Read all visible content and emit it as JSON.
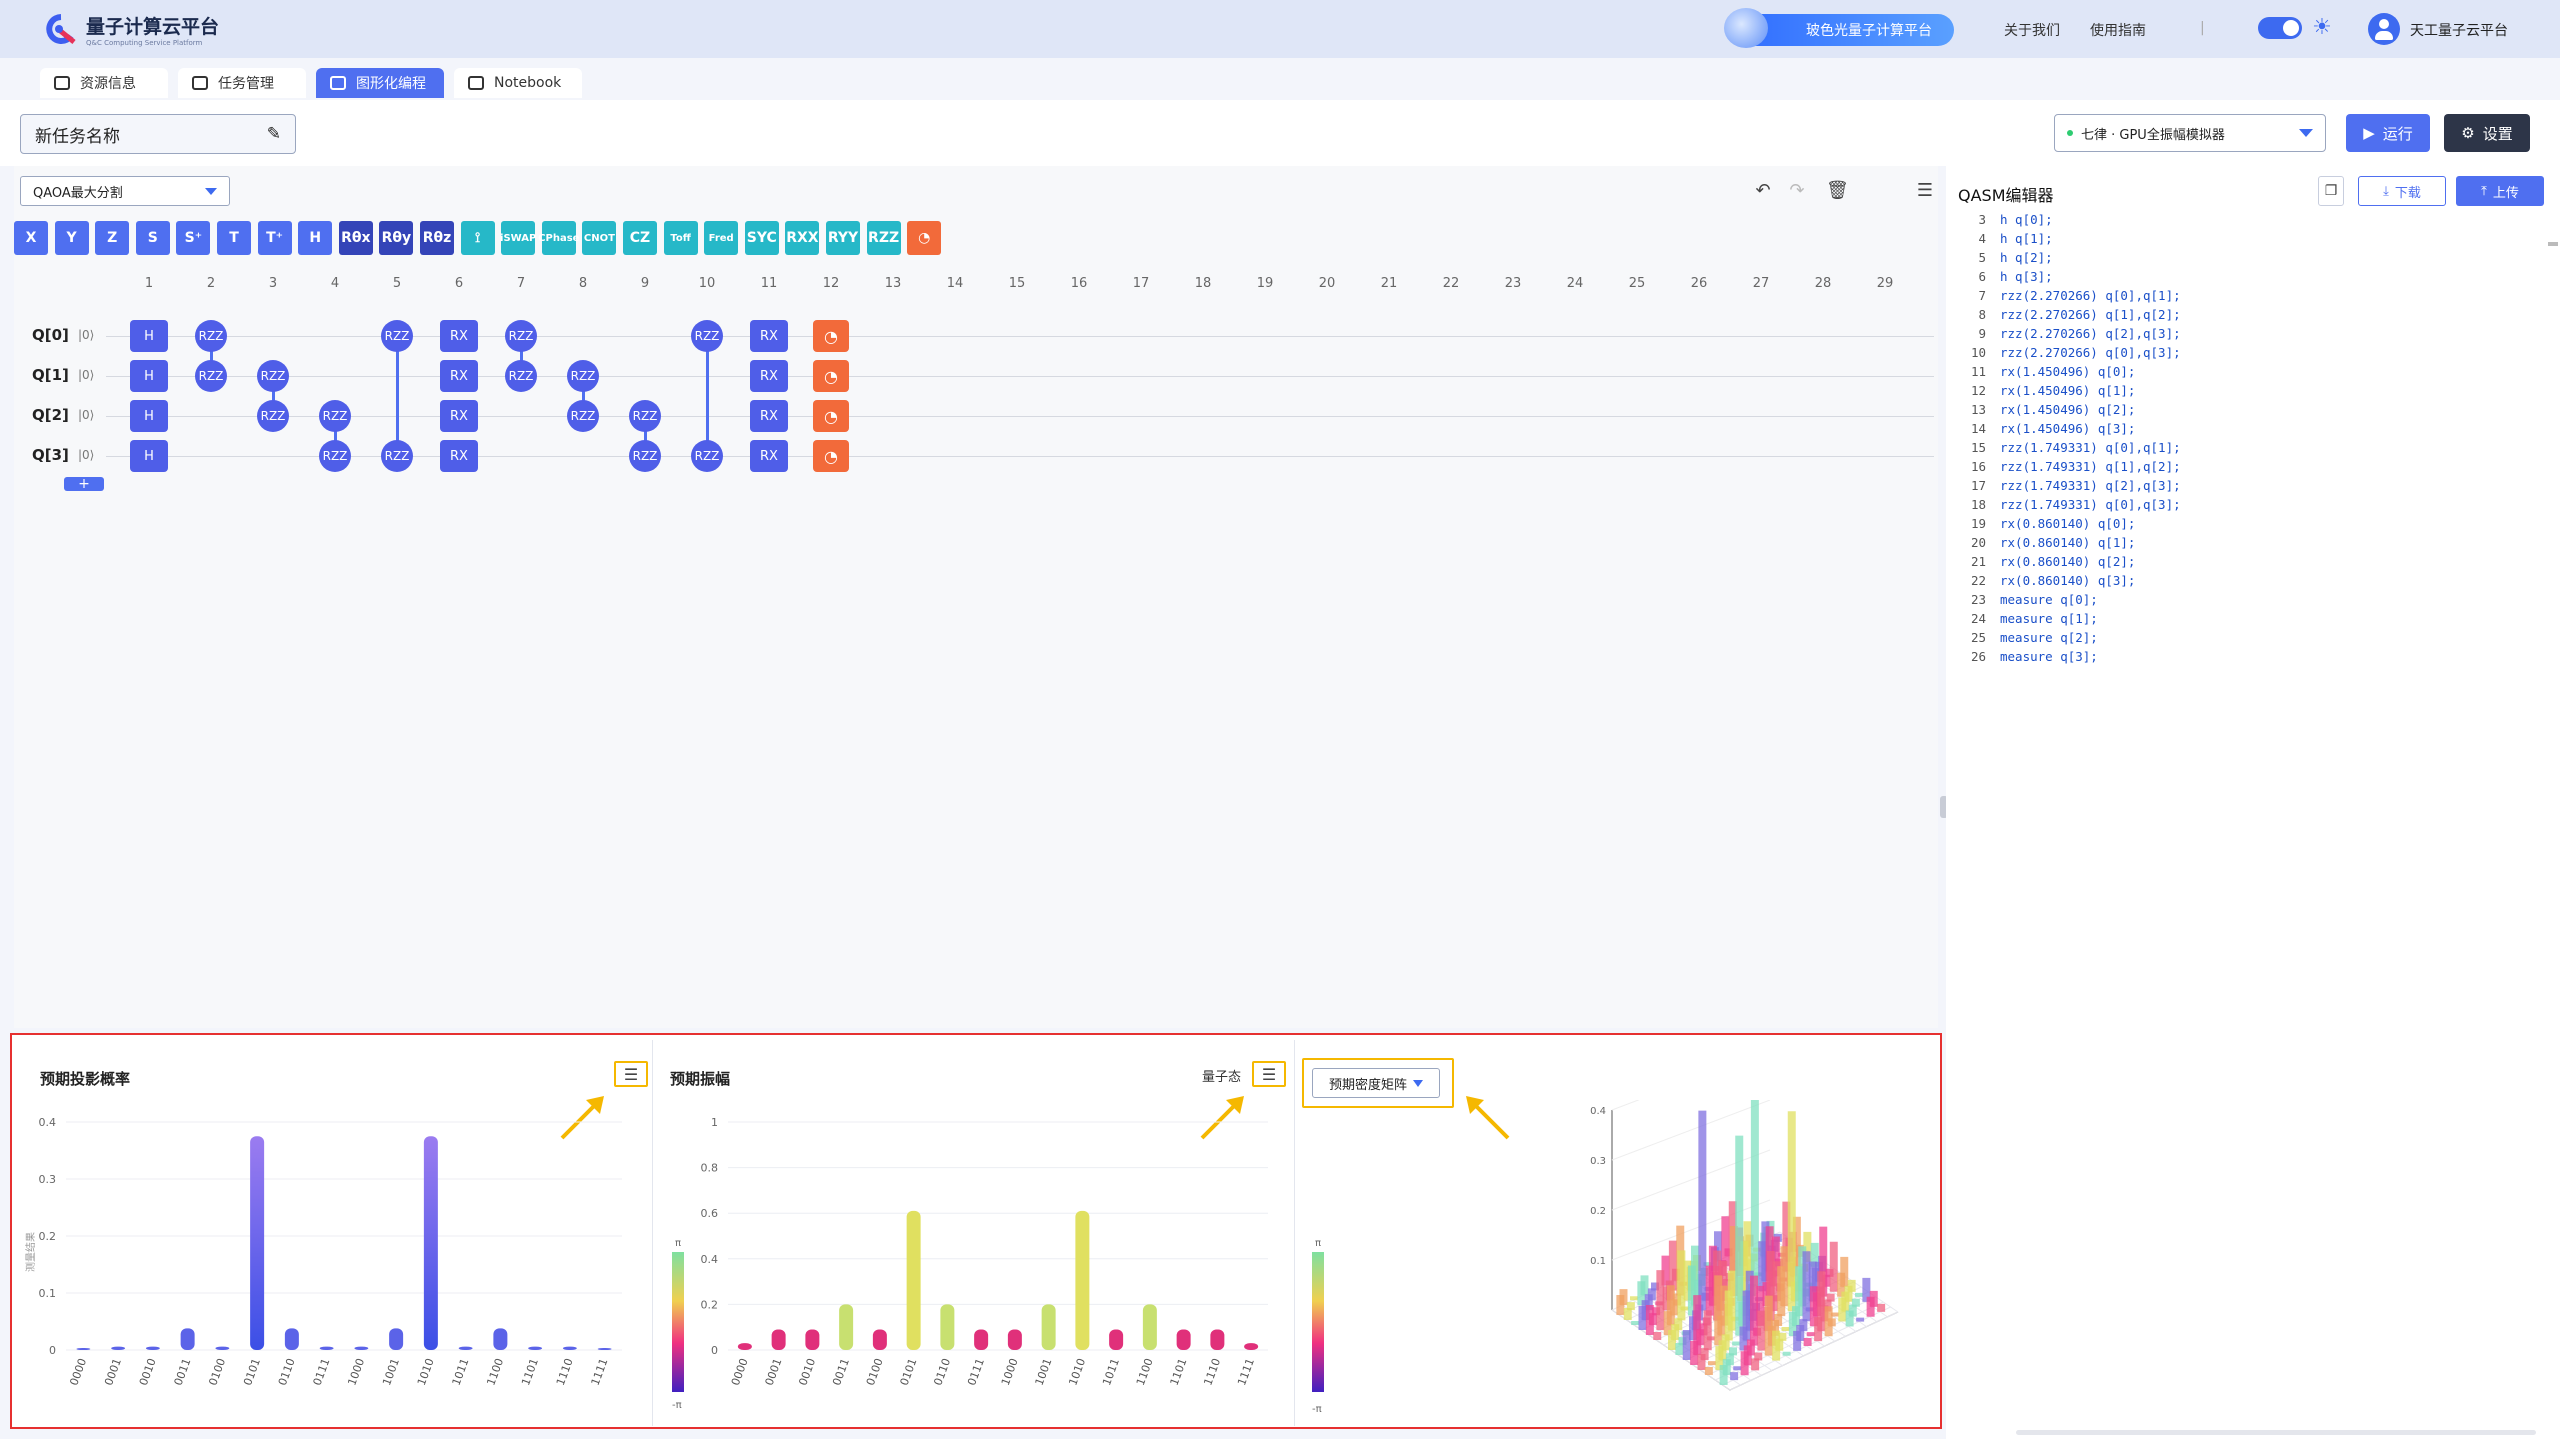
{
  "header": {
    "app_title": "量子计算云平台",
    "app_subtitle": "Q&C Computing Service Platform",
    "promo_label": "玻色光量子计算平台",
    "links": [
      "关于我们",
      "使用指南"
    ],
    "divider": "|",
    "user_name": "天工量子云平台"
  },
  "tabs": [
    {
      "label": "资源信息"
    },
    {
      "label": "任务管理"
    },
    {
      "label": "图形化编程"
    },
    {
      "label": "Notebook"
    }
  ],
  "task": {
    "name": "新任务名称",
    "backend": "七律 · GPU全振幅模拟器",
    "run_label": "运行",
    "settings_label": "设置"
  },
  "editor": {
    "algorithm": "QAOA最大分割",
    "gates": [
      {
        "label": "X",
        "color": "#4f6ff0"
      },
      {
        "label": "Y",
        "color": "#4f6ff0"
      },
      {
        "label": "Z",
        "color": "#4f6ff0"
      },
      {
        "label": "S",
        "color": "#4f6ff0"
      },
      {
        "label": "S⁺",
        "color": "#4f6ff0"
      },
      {
        "label": "T",
        "color": "#4f6ff0"
      },
      {
        "label": "T⁺",
        "color": "#4f6ff0"
      },
      {
        "label": "H",
        "color": "#4f6ff0"
      },
      {
        "label": "Rθx",
        "color": "#3444b8"
      },
      {
        "label": "Rθy",
        "color": "#3444b8"
      },
      {
        "label": "Rθz",
        "color": "#3444b8"
      },
      {
        "label": "⟟",
        "color": "#26b8c8"
      },
      {
        "label": "iSWAP",
        "color": "#26b8c8"
      },
      {
        "label": "CPhase",
        "color": "#26b8c8"
      },
      {
        "label": "CNOT",
        "color": "#26b8c8"
      },
      {
        "label": "CZ",
        "color": "#26b8c8"
      },
      {
        "label": "Toff",
        "color": "#26b8c8"
      },
      {
        "label": "Fred",
        "color": "#26b8c8"
      },
      {
        "label": "SYC",
        "color": "#26b8c8"
      },
      {
        "label": "RXX",
        "color": "#26b8c8"
      },
      {
        "label": "RYY",
        "color": "#26b8c8"
      },
      {
        "label": "RZZ",
        "color": "#26b8c8"
      },
      {
        "label": "◔",
        "color": "#f26a3a"
      }
    ],
    "columns": [
      "1",
      "2",
      "3",
      "4",
      "5",
      "6",
      "7",
      "8",
      "9",
      "10",
      "11",
      "12",
      "13",
      "14",
      "15",
      "16",
      "17",
      "18",
      "19",
      "20",
      "21",
      "22",
      "23",
      "24",
      "25",
      "26",
      "27",
      "28",
      "29"
    ],
    "qubits": [
      {
        "label": "Q[0]",
        "ket": "|0⟩"
      },
      {
        "label": "Q[1]",
        "ket": "|0⟩"
      },
      {
        "label": "Q[2]",
        "ket": "|0⟩"
      },
      {
        "label": "Q[3]",
        "ket": "|0⟩"
      }
    ],
    "gate_labels": {
      "h": "H",
      "rzz": "RZZ",
      "rx": "RX",
      "add": "+"
    }
  },
  "qasm": {
    "title": "QASM编辑器",
    "download_label": "下载",
    "upload_label": "上传",
    "lines": [
      {
        "n": "3",
        "code": "h q[0];"
      },
      {
        "n": "4",
        "code": "h q[1];"
      },
      {
        "n": "5",
        "code": "h q[2];"
      },
      {
        "n": "6",
        "code": "h q[3];"
      },
      {
        "n": "7",
        "code": "rzz(2.270266) q[0],q[1];"
      },
      {
        "n": "8",
        "code": "rzz(2.270266) q[1],q[2];"
      },
      {
        "n": "9",
        "code": "rzz(2.270266) q[2],q[3];"
      },
      {
        "n": "10",
        "code": "rzz(2.270266) q[0],q[3];"
      },
      {
        "n": "11",
        "code": "rx(1.450496) q[0];"
      },
      {
        "n": "12",
        "code": "rx(1.450496) q[1];"
      },
      {
        "n": "13",
        "code": "rx(1.450496) q[2];"
      },
      {
        "n": "14",
        "code": "rx(1.450496) q[3];"
      },
      {
        "n": "15",
        "code": "rzz(1.749331) q[0],q[1];"
      },
      {
        "n": "16",
        "code": "rzz(1.749331) q[1],q[2];"
      },
      {
        "n": "17",
        "code": "rzz(1.749331) q[2],q[3];"
      },
      {
        "n": "18",
        "code": "rzz(1.749331) q[0],q[3];"
      },
      {
        "n": "19",
        "code": "rx(0.860140) q[0];"
      },
      {
        "n": "20",
        "code": "rx(0.860140) q[1];"
      },
      {
        "n": "21",
        "code": "rx(0.860140) q[2];"
      },
      {
        "n": "22",
        "code": "rx(0.860140) q[3];"
      },
      {
        "n": "23",
        "code": "measure q[0];"
      },
      {
        "n": "24",
        "code": "measure q[1];"
      },
      {
        "n": "25",
        "code": "measure q[2];"
      },
      {
        "n": "26",
        "code": "measure q[3];"
      }
    ]
  },
  "results": {
    "prob_title": "预期投影概率",
    "amp_title": "预期振幅",
    "amp_mode": "量子态",
    "matrix_select": "预期密度矩阵",
    "prob_ylabel": "测量结果",
    "pi_top": "π",
    "pi_bottom": "-π",
    "accent": "#f5b800"
  },
  "chart_data": [
    {
      "type": "bar",
      "title": "预期投影概率",
      "categories": [
        "0000",
        "0001",
        "0010",
        "0011",
        "0100",
        "0101",
        "0110",
        "0111",
        "1000",
        "1001",
        "1010",
        "1011",
        "1100",
        "1101",
        "1110",
        "1111"
      ],
      "values": [
        0.002,
        0.006,
        0.006,
        0.038,
        0.006,
        0.375,
        0.038,
        0.006,
        0.006,
        0.038,
        0.375,
        0.006,
        0.038,
        0.006,
        0.006,
        0.002
      ],
      "ylabel": "测量结果",
      "ylim": [
        0,
        0.4
      ],
      "yticks": [
        "0",
        "0.1",
        "0.2",
        "0.3",
        "0.4"
      ]
    },
    {
      "type": "bar",
      "title": "预期振幅",
      "categories": [
        "0000",
        "0001",
        "0010",
        "0011",
        "0100",
        "0101",
        "0110",
        "0111",
        "1000",
        "1001",
        "1010",
        "1011",
        "1100",
        "1101",
        "1110",
        "1111"
      ],
      "values": [
        0.03,
        0.09,
        0.09,
        0.2,
        0.09,
        0.61,
        0.2,
        0.09,
        0.09,
        0.2,
        0.61,
        0.09,
        0.2,
        0.09,
        0.09,
        0.03
      ],
      "ylim": [
        0,
        1
      ],
      "yticks": [
        "0",
        "0.2",
        "0.4",
        "0.6",
        "0.8",
        "1"
      ]
    },
    {
      "type": "bar3d",
      "title": "预期密度矩阵",
      "zticks": [
        "0.1",
        "0.2",
        "0.3",
        "0.4"
      ]
    }
  ]
}
